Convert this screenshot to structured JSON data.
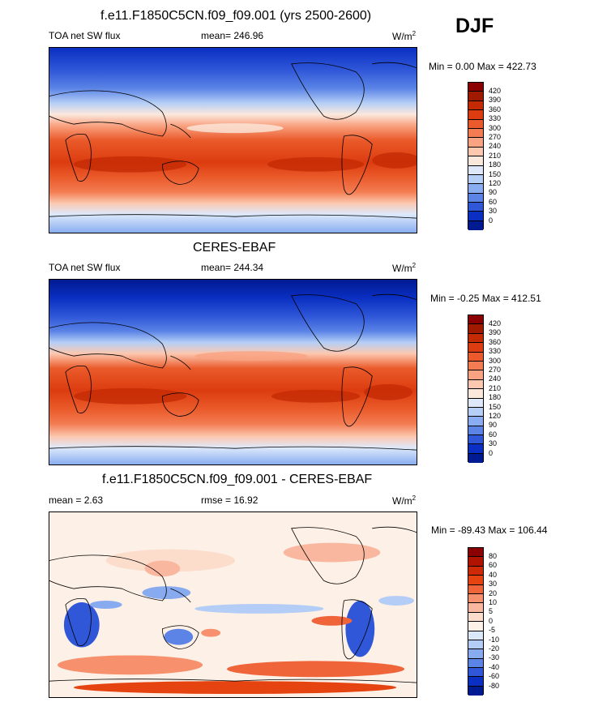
{
  "season": "DJF",
  "panels": [
    {
      "title": "f.e11.F1850C5CN.f09_f09.001 (yrs 2500-2600)",
      "left_label": "TOA net SW flux",
      "mean_label": "mean= 246.96",
      "units": "W/m",
      "units_sup": "2",
      "minmax": "Min =   0.00 Max = 422.73",
      "colorbar_labels": [
        "420",
        "390",
        "360",
        "330",
        "300",
        "270",
        "240",
        "210",
        "180",
        "150",
        "120",
        "90",
        "60",
        "30",
        "0"
      ],
      "colorbar_colors": [
        "#8b0000",
        "#a01a00",
        "#c42b05",
        "#dc3c0f",
        "#ea5a2a",
        "#f37c52",
        "#f9a382",
        "#fcc8b0",
        "#fbe8dc",
        "#dde9fb",
        "#b5cff6",
        "#89adf0",
        "#5b84e6",
        "#2f57d8",
        "#0a2fc2",
        "#001a92"
      ]
    },
    {
      "title": "CERES-EBAF",
      "left_label": "TOA net SW flux",
      "mean_label": "mean= 244.34",
      "units": "W/m",
      "units_sup": "2",
      "minmax": "Min =  -0.25 Max = 412.51",
      "colorbar_labels": [
        "420",
        "390",
        "360",
        "330",
        "300",
        "270",
        "240",
        "210",
        "180",
        "150",
        "120",
        "90",
        "60",
        "30",
        "0"
      ],
      "colorbar_colors": [
        "#8b0000",
        "#a01a00",
        "#c42b05",
        "#dc3c0f",
        "#ea5a2a",
        "#f37c52",
        "#f9a382",
        "#fcc8b0",
        "#fbe8dc",
        "#dde9fb",
        "#b5cff6",
        "#89adf0",
        "#5b84e6",
        "#2f57d8",
        "#0a2fc2",
        "#001a92"
      ]
    },
    {
      "title": "f.e11.F1850C5CN.f09_f09.001 - CERES-EBAF",
      "left_label": "mean =   2.63",
      "mean_label": "rmse =  16.92",
      "units": "W/m",
      "units_sup": "2",
      "minmax": "Min = -89.43 Max = 106.44",
      "colorbar_labels": [
        "80",
        "60",
        "40",
        "30",
        "20",
        "10",
        "5",
        "0",
        "-5",
        "-10",
        "-20",
        "-30",
        "-40",
        "-60",
        "-80"
      ],
      "colorbar_colors": [
        "#8b0000",
        "#b01400",
        "#cf2a06",
        "#e5430f",
        "#f0643a",
        "#f6906d",
        "#fab79f",
        "#fcdccb",
        "#fdf0e6",
        "#dbe7fb",
        "#b3cdf6",
        "#88abf0",
        "#5b84e6",
        "#2f57d8",
        "#0a2fc2",
        "#001a92"
      ]
    }
  ]
}
